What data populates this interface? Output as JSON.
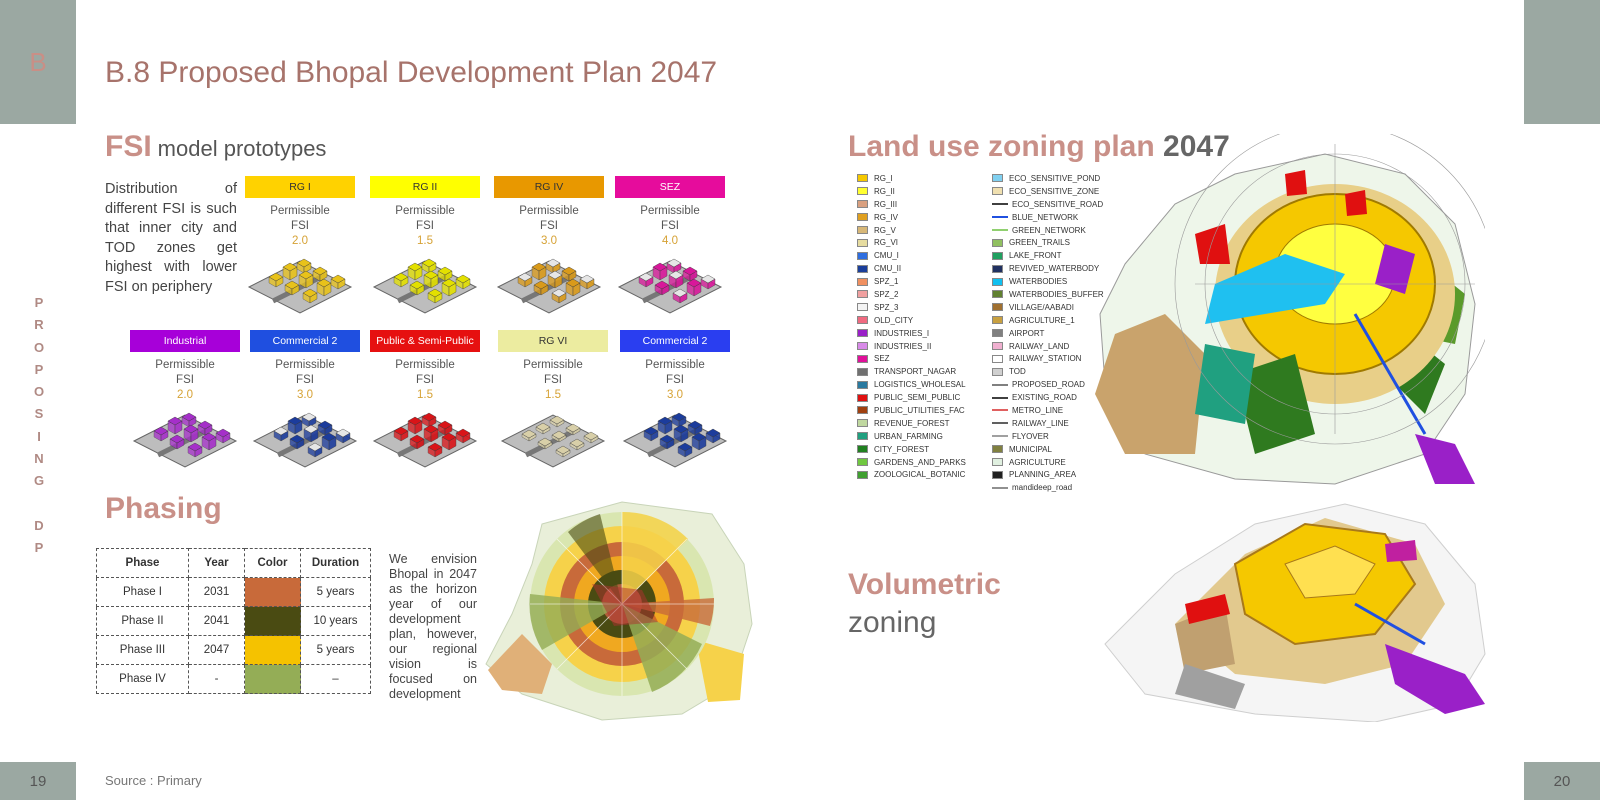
{
  "corner_letter": "B",
  "page_left": "19",
  "page_right": "20",
  "side_label_top": [
    "P",
    "R",
    "O",
    "P",
    "O",
    "S",
    "I",
    "N",
    "G"
  ],
  "side_label_bottom": [
    "D",
    "P"
  ],
  "title": "B.8 Proposed Bhopal Development Plan 2047",
  "fsi_heading": "FSI",
  "fsi_subheading": "model prototypes",
  "fsi_description": "Distribution of different FSI is such that inner city and TOD zones get highest with lower FSI on periphery",
  "perm_line1": "Permissible",
  "perm_line2": "FSI",
  "prototypes": [
    {
      "label": "RG I",
      "fsi": "2.0",
      "tag_color": "#ffd200",
      "tag_text_color": "#333333",
      "block_color": "#e8c21a"
    },
    {
      "label": "RG II",
      "fsi": "1.5",
      "tag_color": "#ffff00",
      "tag_text_color": "#333333",
      "block_color": "#e3e000"
    },
    {
      "label": "RG IV",
      "fsi": "3.0",
      "tag_color": "#e89800",
      "tag_text_color": "#333333",
      "block_color": "#d99a1a"
    },
    {
      "label": "SEZ",
      "fsi": "4.0",
      "tag_color": "#e60c9c",
      "tag_text_color": "#ffffff",
      "block_color": "#d8179a"
    },
    {
      "label": "Industrial",
      "fsi": "2.0",
      "tag_color": "#a700d9",
      "tag_text_color": "#ffffff",
      "block_color": "#a52fc9"
    },
    {
      "label": "Commercial 2",
      "fsi": "3.0",
      "tag_color": "#1f4fe0",
      "tag_text_color": "#ffffff",
      "block_color": "#1c3c9c"
    },
    {
      "label": "Public & Semi-Public",
      "fsi": "1.5",
      "tag_color": "#e61010",
      "tag_text_color": "#ffffff",
      "block_color": "#d91418"
    },
    {
      "label": "RG VI",
      "fsi": "1.5",
      "tag_color": "#ececa0",
      "tag_text_color": "#333333",
      "block_color": "#d8cfa8"
    },
    {
      "label": "Commercial 2",
      "fsi": "3.0",
      "tag_color": "#2a3ef0",
      "tag_text_color": "#ffffff",
      "block_color": "#1c3c9c"
    }
  ],
  "phasing_heading": "Phasing",
  "phase_table": {
    "headers": [
      "Phase",
      "Year",
      "Color",
      "Duration"
    ],
    "rows": [
      {
        "phase": "Phase I",
        "year": "2031",
        "color": "#c86a3a",
        "duration": "5 years"
      },
      {
        "phase": "Phase II",
        "year": "2041",
        "color": "#4a4b12",
        "duration": "10 years"
      },
      {
        "phase": "Phase III",
        "year": "2047",
        "color": "#f5c200",
        "duration": "5 years"
      },
      {
        "phase": "Phase IV",
        "year": "-",
        "color": "#94ad56",
        "duration": "–"
      }
    ]
  },
  "phasing_text": "We envision Bhopal in 2047 as the horizon year of our development plan, however, our regional vision is focused on development",
  "landuse_heading": "Land use zoning plan",
  "landuse_year": "2047",
  "legend_col1": [
    {
      "label": "RG_I",
      "color": "#f5c800"
    },
    {
      "label": "RG_II",
      "color": "#ffff30"
    },
    {
      "label": "RG_III",
      "color": "#d9a080"
    },
    {
      "label": "RG_IV",
      "color": "#e0a020"
    },
    {
      "label": "RG_V",
      "color": "#d8b878"
    },
    {
      "label": "RG_VI",
      "color": "#e6dca0"
    },
    {
      "label": "CMU_I",
      "color": "#2e6ee0"
    },
    {
      "label": "CMU_II",
      "color": "#1a3e9a"
    },
    {
      "label": "SPZ_1",
      "color": "#f09060"
    },
    {
      "label": "SPZ_2",
      "color": "#f0a0a0"
    },
    {
      "label": "SPZ_3",
      "color": "#f4f4f4"
    },
    {
      "label": "OLD_CITY",
      "color": "#f06a80"
    },
    {
      "label": "INDUSTRIES_I",
      "color": "#9a20c8"
    },
    {
      "label": "INDUSTRIES_II",
      "color": "#d88ae8"
    },
    {
      "label": "SEZ",
      "color": "#e0109a"
    },
    {
      "label": "TRANSPORT_NAGAR",
      "color": "#707070"
    },
    {
      "label": "LOGISTICS_WHOLESAL",
      "color": "#2a7aa0"
    },
    {
      "label": "PUBLIC_SEMI_PUBLIC",
      "color": "#e01010"
    },
    {
      "label": "PUBLIC_UTILITIES_FAC",
      "color": "#a04010"
    },
    {
      "label": "REVENUE_FOREST",
      "color": "#c0d8a0"
    },
    {
      "label": "URBAN_FARMING",
      "color": "#20a080"
    },
    {
      "label": "CITY_FOREST",
      "color": "#208020"
    },
    {
      "label": "GARDENS_AND_PARKS",
      "color": "#70c840"
    },
    {
      "label": "ZOOLOGICAL_BOTANIC",
      "color": "#40a030"
    }
  ],
  "legend_col2": [
    {
      "label": "ECO_SENSITIVE_POND",
      "color": "#80d0f0",
      "kind": "box"
    },
    {
      "label": "ECO_SENSITIVE_ZONE",
      "color": "#f0e0b0",
      "kind": "box"
    },
    {
      "label": "ECO_SENSITIVE_ROAD",
      "color": "#404040",
      "kind": "line"
    },
    {
      "label": "BLUE_NETWORK",
      "color": "#2050e0",
      "kind": "line"
    },
    {
      "label": "GREEN_NETWORK",
      "color": "#90d070",
      "kind": "line"
    },
    {
      "label": "GREEN_TRAILS",
      "color": "#90c060",
      "kind": "box"
    },
    {
      "label": "LAKE_FRONT",
      "color": "#20a060",
      "kind": "box"
    },
    {
      "label": "REVIVED_WATERBODY",
      "color": "#203060",
      "kind": "box"
    },
    {
      "label": "WATERBODIES",
      "color": "#10c0f0",
      "kind": "box"
    },
    {
      "label": "WATERBODIES_BUFFER",
      "color": "#608030",
      "kind": "box"
    },
    {
      "label": "VILLAGE/AABADI",
      "color": "#a07030",
      "kind": "box"
    },
    {
      "label": "AGRICULTURE_1",
      "color": "#c8a040",
      "kind": "box"
    },
    {
      "label": "AIRPORT",
      "color": "#808080",
      "kind": "box"
    },
    {
      "label": "RAILWAY_LAND",
      "color": "#f0b0d0",
      "kind": "box"
    },
    {
      "label": "RAILWAY_STATION",
      "color": "#ffffff",
      "kind": "box"
    },
    {
      "label": "TOD",
      "color": "#d0d0d0",
      "kind": "box"
    },
    {
      "label": "PROPOSED_ROAD",
      "color": "#808080",
      "kind": "line"
    },
    {
      "label": "EXISTING_ROAD",
      "color": "#404040",
      "kind": "line"
    },
    {
      "label": "METRO_LINE",
      "color": "#e06060",
      "kind": "line"
    },
    {
      "label": "RAILWAY_LINE",
      "color": "#606060",
      "kind": "line"
    },
    {
      "label": "FLYOVER",
      "color": "#a0a0a0",
      "kind": "line"
    },
    {
      "label": "MUNICIPAL",
      "color": "#808040",
      "kind": "box"
    },
    {
      "label": "AGRICULTURE",
      "color": "#e0f0e0",
      "kind": "box"
    },
    {
      "label": "PLANNING_AREA",
      "color": "#202020",
      "kind": "box"
    },
    {
      "label": "mandideep_road",
      "color": "#909090",
      "kind": "line"
    }
  ],
  "volumetric_heading": "Volumetric",
  "volumetric_sub": "zoning",
  "source": "Source : Primary"
}
